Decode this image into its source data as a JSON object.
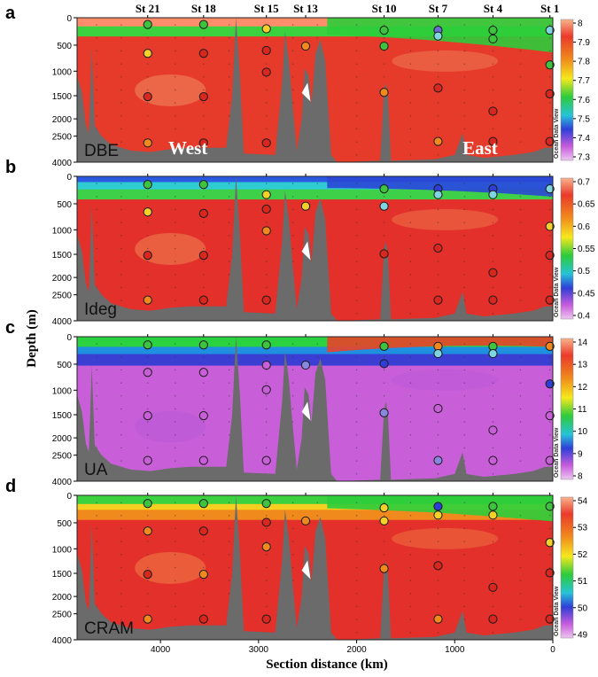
{
  "chart_data": {
    "type": "heatmap",
    "xlabel": "Section distance (km)",
    "ylabel": "Depth (m)",
    "xlim": [
      4850,
      0
    ],
    "x_ticks": [
      4000,
      3000,
      2000,
      1000,
      0
    ],
    "ylim_m": [
      0,
      4000
    ],
    "depth_ticks": [
      0,
      500,
      1000,
      1500,
      2000,
      2500,
      4000
    ],
    "stations": [
      {
        "name": "St 21",
        "km": 4130
      },
      {
        "name": "St 18",
        "km": 3560
      },
      {
        "name": "St 15",
        "km": 2920
      },
      {
        "name": "St 13",
        "km": 2520
      },
      {
        "name": "St 10",
        "km": 1720
      },
      {
        "name": "St 7",
        "km": 1170
      },
      {
        "name": "St 4",
        "km": 610
      },
      {
        "name": "St 1",
        "km": 30
      }
    ],
    "region_labels": {
      "west": "West",
      "east": "East"
    },
    "watermark": "Ocean Data View",
    "panels": [
      {
        "letter": "a",
        "variable": "DBE",
        "colorbar_ticks": [
          "8",
          "7.9",
          "7.8",
          "7.7",
          "7.6",
          "7.5",
          "7.4",
          "7.3"
        ]
      },
      {
        "letter": "b",
        "variable": "Ideg",
        "colorbar_ticks": [
          "0.7",
          "0.65",
          "0.6",
          "0.55",
          "0.5",
          "0.45",
          "0.4"
        ]
      },
      {
        "letter": "c",
        "variable": "UA",
        "colorbar_ticks": [
          "14",
          "13",
          "12",
          "11",
          "10",
          "9",
          "8"
        ]
      },
      {
        "letter": "d",
        "variable": "CRAM",
        "colorbar_ticks": [
          "54",
          "53",
          "52",
          "51",
          "50",
          "49"
        ]
      }
    ]
  }
}
